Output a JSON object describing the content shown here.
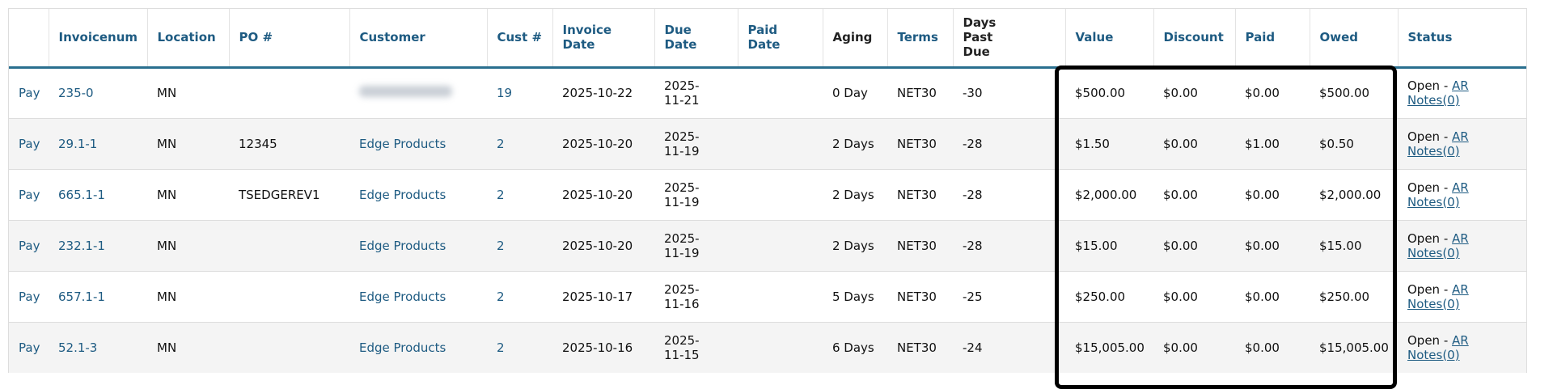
{
  "table": {
    "headers": [
      null,
      "Invoicenum",
      "Location",
      "PO #",
      "Customer",
      "Cust #",
      "Invoice Date",
      "Due Date",
      "Paid Date",
      "Aging",
      "Terms",
      "Days Past Due",
      "Value",
      "Discount",
      "Paid",
      "Owed",
      "Status"
    ],
    "rows": [
      [
        "Pay",
        "235-0",
        "MN",
        null,
        null,
        "19",
        "2025-10-22",
        "2025-11-21",
        null,
        "0 Day",
        "NET30",
        "-30",
        "$500.00",
        "$0.00",
        "$0.00",
        "$500.00",
        {
          "status": "Open -",
          "notes": "AR Notes(0)"
        }
      ],
      [
        "Pay",
        "29.1-1",
        "MN",
        "12345",
        "Edge Products",
        "2",
        "2025-10-20",
        "2025-11-19",
        null,
        "2 Days",
        "NET30",
        "-28",
        "$1.50",
        "$0.00",
        "$1.00",
        "$0.50",
        {
          "status": "Open -",
          "notes": "AR Notes(0)"
        }
      ],
      [
        "Pay",
        "665.1-1",
        "MN",
        "TSEDGEREV1",
        "Edge Products",
        "2",
        "2025-10-20",
        "2025-11-19",
        null,
        "2 Days",
        "NET30",
        "-28",
        "$2,000.00",
        "$0.00",
        "$0.00",
        "$2,000.00",
        {
          "status": "Open -",
          "notes": "AR Notes(0)"
        }
      ],
      [
        "Pay",
        "232.1-1",
        "MN",
        null,
        "Edge Products",
        "2",
        "2025-10-20",
        "2025-11-19",
        null,
        "2 Days",
        "NET30",
        "-28",
        "$15.00",
        "$0.00",
        "$0.00",
        "$15.00",
        {
          "status": "Open -",
          "notes": "AR Notes(0)"
        }
      ],
      [
        "Pay",
        "657.1-1",
        "MN",
        null,
        "Edge Products",
        "2",
        "2025-10-17",
        "2025-11-16",
        null,
        "5 Days",
        "NET30",
        "-25",
        "$250.00",
        "$0.00",
        "$0.00",
        "$250.00",
        {
          "status": "Open -",
          "notes": "AR Notes(0)"
        }
      ],
      [
        "Pay",
        "52.1-3",
        "MN",
        null,
        "Edge Products",
        "2",
        "2025-10-16",
        "2025-11-15",
        null,
        "6 Days",
        "NET30",
        "-24",
        "$15,005.00",
        "$0.00",
        "$0.00",
        "$15,005.00",
        {
          "status": "Open -",
          "notes": "AR Notes(0)"
        }
      ]
    ]
  }
}
